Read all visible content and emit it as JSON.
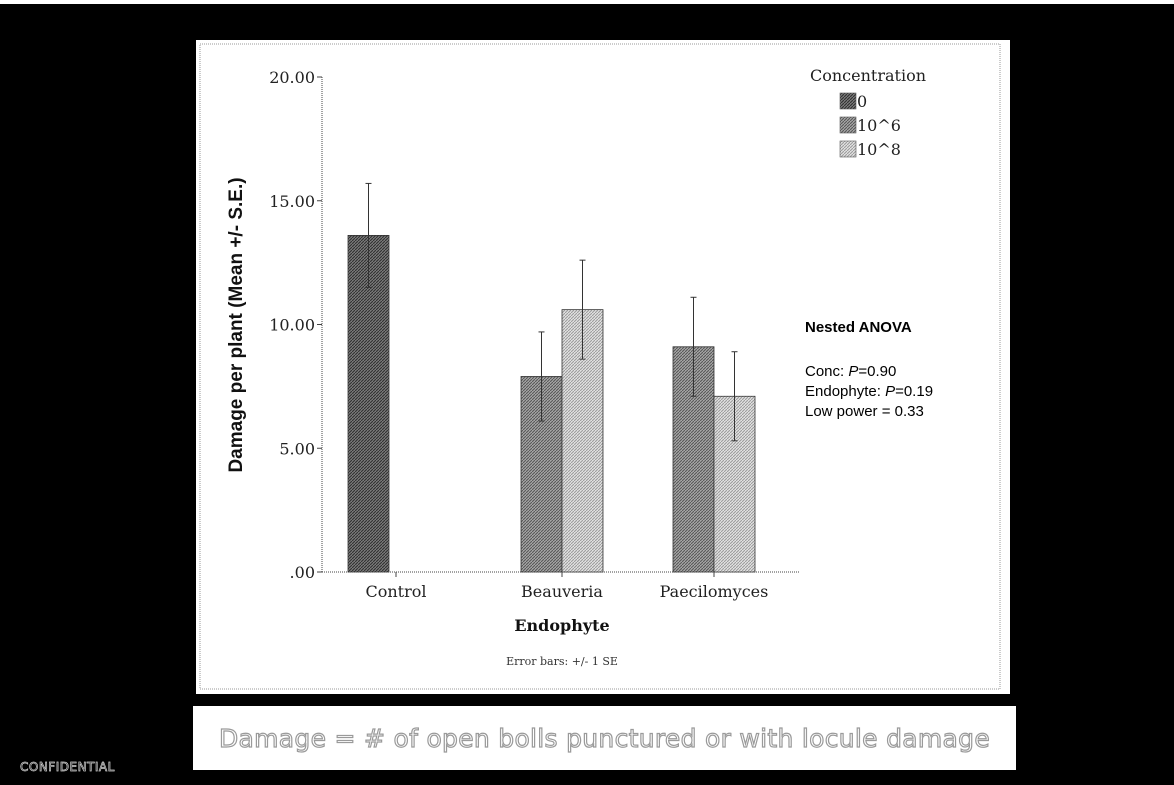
{
  "chart_data": {
    "type": "bar",
    "title": "",
    "xlabel": "Endophyte",
    "ylabel": "Damage per plant (Mean +/- S.E.)",
    "ylim": [
      0,
      20
    ],
    "yticks": [
      ".00",
      "5.00",
      "10.00",
      "15.00",
      "20.00"
    ],
    "categories": [
      "Control",
      "Beauveria",
      "Paecilomyces"
    ],
    "legend_title": "Concentration",
    "legend_position": "top-right",
    "series": [
      {
        "name": "0",
        "values": [
          13.6,
          null,
          null
        ],
        "se": [
          2.1,
          null,
          null
        ],
        "color": "#5e5e5e"
      },
      {
        "name": "10^6",
        "values": [
          null,
          7.9,
          9.1
        ],
        "se": [
          null,
          1.8,
          2.0
        ],
        "color": "#8a8a8a"
      },
      {
        "name": "10^8",
        "values": [
          null,
          10.6,
          7.1
        ],
        "se": [
          null,
          2.0,
          1.8
        ],
        "color": "#c4c4c4"
      }
    ],
    "note": "Error bars: +/- 1 SE",
    "stats": {
      "heading": "Nested ANOVA",
      "lines": [
        {
          "prefix": "Conc: ",
          "italic": "P",
          "suffix": "=0.90"
        },
        {
          "prefix": "Endophyte: ",
          "italic": "P",
          "suffix": "=0.19"
        },
        {
          "prefix": "Low power = 0.33",
          "italic": "",
          "suffix": ""
        }
      ]
    },
    "grid": false
  },
  "caption": "Damage = # of open bolls punctured or with locule damage",
  "footer": "CONFIDENTIAL"
}
